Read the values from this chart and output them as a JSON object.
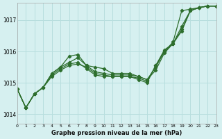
{
  "xlabel": "Graphe pression niveau de la mer (hPa)",
  "background_color": "#d6f0f0",
  "grid_color": "#b8dede",
  "line_color": "#2d6e2d",
  "xlim": [
    0,
    23
  ],
  "ylim": [
    1013.7,
    1017.55
  ],
  "yticks": [
    1014,
    1015,
    1016,
    1017
  ],
  "xticks": [
    0,
    1,
    2,
    3,
    4,
    5,
    6,
    7,
    8,
    9,
    10,
    11,
    12,
    13,
    14,
    15,
    16,
    17,
    18,
    19,
    20,
    21,
    22,
    23
  ],
  "series_x": [
    [
      0,
      1,
      2,
      3,
      4,
      5,
      6,
      7,
      8,
      9,
      10,
      11,
      12,
      13,
      14,
      15,
      16,
      17,
      18,
      19,
      20,
      21,
      22,
      23
    ],
    [
      0,
      1,
      2,
      3,
      4,
      5,
      6,
      7,
      8,
      9,
      10,
      11,
      12,
      13,
      14,
      15,
      16,
      17,
      18,
      19,
      20,
      21,
      22,
      23
    ],
    [
      0,
      1,
      2,
      3,
      4,
      5,
      6,
      7,
      8,
      9,
      10,
      11,
      12,
      13,
      14,
      15,
      16,
      17,
      18,
      19,
      20,
      21,
      22,
      23
    ],
    [
      0,
      1,
      2,
      3,
      4,
      5,
      6,
      7,
      8,
      9,
      10,
      11,
      12,
      13,
      14,
      15,
      16,
      17,
      18,
      19,
      20,
      21,
      22,
      23
    ]
  ],
  "series_y": [
    [
      1014.8,
      1014.2,
      1014.65,
      1014.85,
      1015.3,
      1015.5,
      1015.85,
      1015.9,
      1015.55,
      1015.5,
      1015.45,
      1015.3,
      1015.3,
      1015.3,
      1015.2,
      1015.1,
      1015.5,
      1016.0,
      1016.3,
      1017.3,
      1017.35,
      1017.4,
      1017.45,
      1017.45
    ],
    [
      1014.8,
      1014.2,
      1014.65,
      1014.85,
      1015.3,
      1015.5,
      1015.65,
      1015.8,
      1015.55,
      1015.35,
      1015.3,
      1015.25,
      1015.25,
      1015.25,
      1015.2,
      1015.1,
      1015.4,
      1015.95,
      1016.25,
      1016.8,
      1017.3,
      1017.4,
      1017.45,
      1017.45
    ],
    [
      1014.8,
      1014.2,
      1014.65,
      1014.85,
      1015.25,
      1015.45,
      1015.6,
      1015.65,
      1015.45,
      1015.25,
      1015.2,
      1015.2,
      1015.2,
      1015.2,
      1015.15,
      1015.05,
      1015.55,
      1016.0,
      1016.25,
      1016.7,
      1017.3,
      1017.4,
      1017.45,
      1017.45
    ],
    [
      1014.8,
      1014.2,
      1014.65,
      1014.85,
      1015.2,
      1015.4,
      1015.55,
      1015.6,
      1015.5,
      1015.3,
      1015.25,
      1015.2,
      1015.2,
      1015.2,
      1015.1,
      1015.0,
      1015.55,
      1016.05,
      1016.25,
      1016.65,
      1017.3,
      1017.4,
      1017.45,
      1017.45
    ]
  ],
  "marker": "D",
  "marker_size": 2.2,
  "linewidth": 0.9
}
